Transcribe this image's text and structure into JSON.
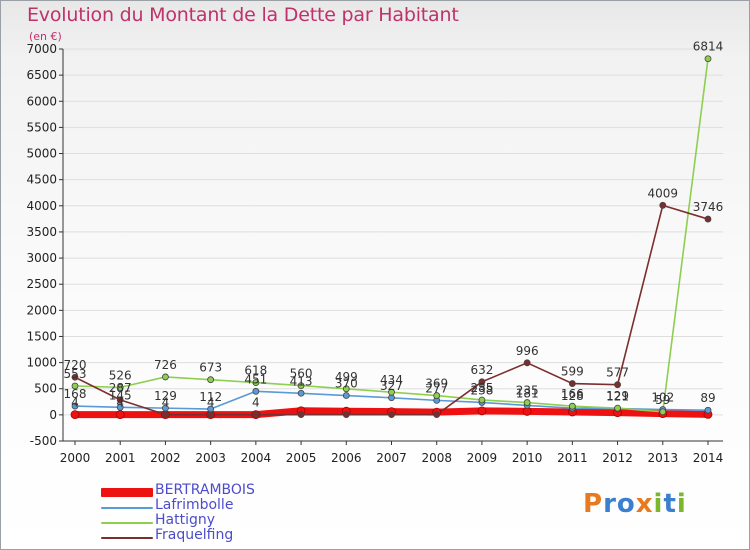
{
  "title": "Evolution du Montant de la Dette par Habitant",
  "subtitle": "(en €)",
  "logo_text": "Proxiti",
  "colors": {
    "title": "#c0316b",
    "legend_text": "#4c4ccc",
    "axis": "#333333",
    "grid": "#dedede"
  },
  "chart_data": {
    "type": "line",
    "title": "Evolution du Montant de la Dette par Habitant",
    "subtitle": "(en €)",
    "xlabel": "",
    "ylabel": "",
    "categories": [
      "2000",
      "2001",
      "2002",
      "2003",
      "2004",
      "2005",
      "2006",
      "2007",
      "2008",
      "2009",
      "2010",
      "2011",
      "2012",
      "2013",
      "2014"
    ],
    "ylim": [
      -500,
      7000
    ],
    "yticks": [
      -500,
      0,
      500,
      1000,
      1500,
      2000,
      2500,
      3000,
      3500,
      4000,
      4500,
      5000,
      5500,
      6000,
      6500,
      7000
    ],
    "grid": true,
    "legend_position": "bottom-left",
    "series": [
      {
        "name": "BERTRAMBOIS",
        "color": "#ee1111",
        "values": [
          4,
          4,
          4,
          4,
          4,
          79,
          70,
          62,
          53,
          77,
          66,
          55,
          42,
          24,
          10
        ],
        "labels": [
          "4",
          "4",
          "4",
          "4",
          "4",
          "",
          "",
          "",
          "",
          "",
          "",
          "",
          "",
          "",
          ""
        ]
      },
      {
        "name": "Lafrimbolle",
        "color": "#5a9ad6",
        "values": [
          168,
          145,
          129,
          112,
          451,
          413,
          370,
          327,
          277,
          238,
          181,
          128,
          121,
          102,
          89
        ],
        "labels": [
          "168",
          "145",
          "129",
          "112",
          "451",
          "413",
          "370",
          "327",
          "277",
          "238",
          "181",
          "128",
          "121",
          "102",
          "89"
        ]
      },
      {
        "name": "Hattigny",
        "color": "#8ecf4f",
        "values": [
          553,
          526,
          726,
          673,
          618,
          560,
          499,
          434,
          369,
          285,
          235,
          166,
          129,
          59,
          6814
        ],
        "labels": [
          "553",
          "526",
          "726",
          "673",
          "618",
          "560",
          "499",
          "434",
          "369",
          "285",
          "235",
          "166",
          "129",
          "59",
          "6814"
        ]
      },
      {
        "name": "Fraquelfing",
        "color": "#7b2e2e",
        "values": [
          720,
          287,
          4,
          4,
          4,
          4,
          4,
          4,
          4,
          632,
          996,
          599,
          577,
          4009,
          3746
        ],
        "labels": [
          "720",
          "287",
          "",
          "",
          "",
          "",
          "",
          "",
          "",
          "632",
          "996",
          "599",
          "577",
          "4009",
          "3746"
        ]
      }
    ]
  }
}
